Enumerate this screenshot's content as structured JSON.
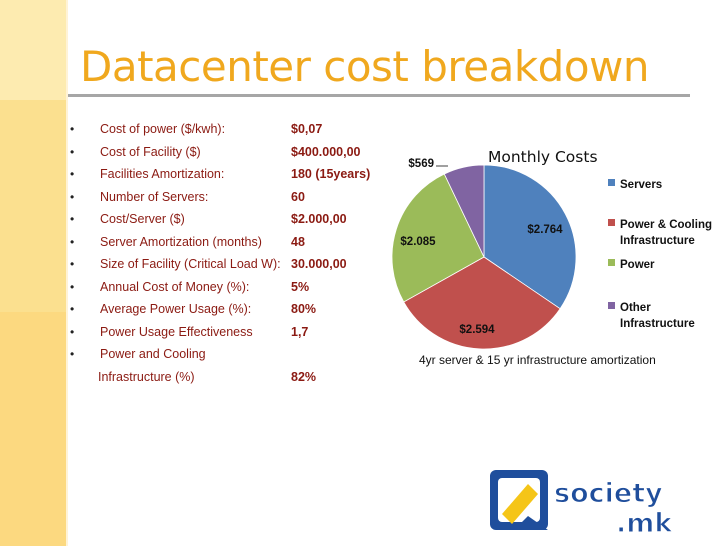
{
  "slide": {
    "title": "Datacenter cost breakdown"
  },
  "bullets": [
    {
      "label": "Cost of power ($/kwh):",
      "value": "$0,07"
    },
    {
      "label": "Cost of Facility ($)",
      "value": "$400.000,00"
    },
    {
      "label": "Facilities Amortization:",
      "value": "180 (15years)"
    },
    {
      "label": "Number of Servers:",
      "value": "60"
    },
    {
      "label": "Cost/Server ($)",
      "value": "$2.000,00"
    },
    {
      "label": "Server Amortization (months)",
      "value": "48"
    },
    {
      "label": "Size of Facility (Critical Load W):",
      "value": "30.000,00"
    },
    {
      "label": "Annual Cost of Money (%):",
      "value": "5%"
    },
    {
      "label": "Average Power Usage (%):",
      "value": "80%"
    },
    {
      "label": "Power Usage Effectiveness",
      "value": "1,7"
    },
    {
      "label": "Power and Cooling",
      "value": ""
    }
  ],
  "bullet_continuation": {
    "label": "Infrastructure (%)",
    "value": "82%"
  },
  "chart_data": {
    "type": "pie",
    "title": "Monthly Costs",
    "categories": [
      "Servers",
      "Power & Cooling Infrastructure",
      "Power",
      "Other Infrastructure"
    ],
    "values": [
      2764,
      2594,
      2085,
      569
    ],
    "data_labels": [
      "$2.764",
      "$2.594",
      "$2.085",
      "$569"
    ],
    "colors": [
      "#4f81bd",
      "#c0504d",
      "#9bbb59",
      "#8064a2"
    ],
    "legend": {
      "position": "right",
      "entries": [
        [
          "Servers"
        ],
        [
          "Power & Cooling",
          "Infrastructure"
        ],
        [
          "Power"
        ],
        [
          "Other",
          "Infrastructure"
        ]
      ]
    }
  },
  "caption": "4yr server & 15 yr infrastructure amortization",
  "logo": {
    "line1": "society",
    "line2": ".mk",
    "colors": {
      "blue": "#1f4e9c",
      "yellow": "#f5c518",
      "white": "#ffffff"
    }
  }
}
